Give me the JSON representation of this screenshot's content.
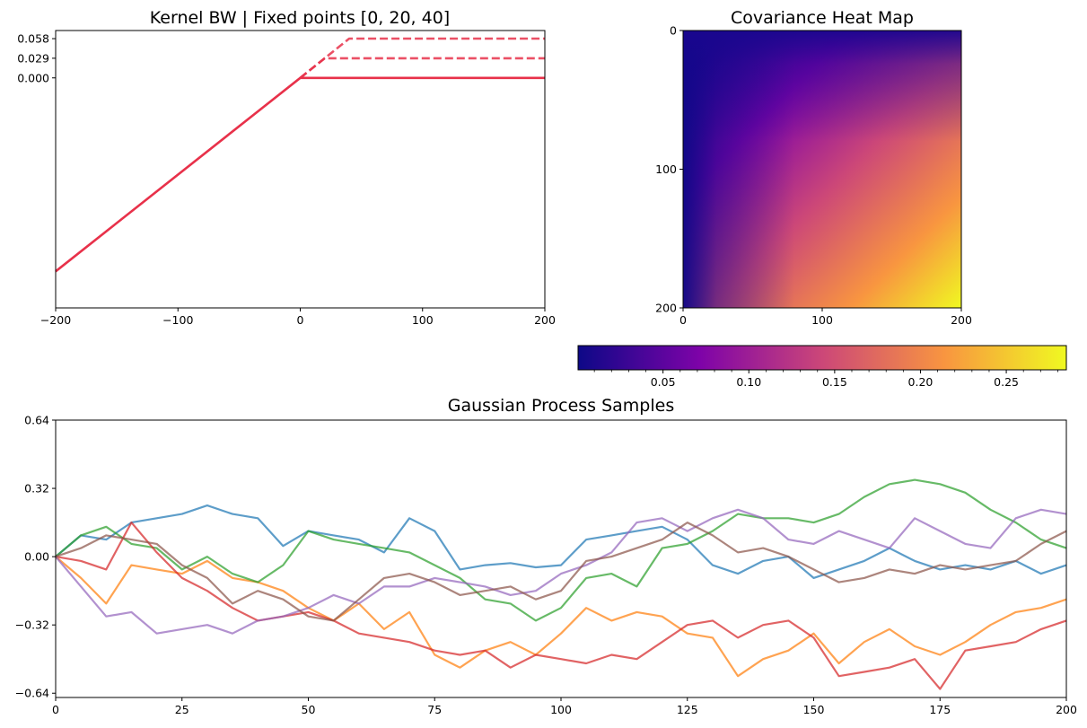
{
  "chart_data": [
    {
      "type": "line",
      "title": "Kernel BW | Fixed points [0, 20, 40]",
      "xlim": [
        -200,
        200
      ],
      "ylim": [
        -0.34,
        0.07
      ],
      "xticks": [
        -200,
        -100,
        0,
        100,
        200
      ],
      "xtick_labels": [
        "−200",
        "−100",
        "0",
        "100",
        "200"
      ],
      "yticks": [
        0.0,
        0.029,
        0.058
      ],
      "ytick_labels": [
        "0.000",
        "0.029",
        "0.058"
      ],
      "color": "#e8314a",
      "series": [
        {
          "style": "solid",
          "x": [
            -200,
            0,
            200
          ],
          "y": [
            -0.286,
            0.0,
            0.0
          ]
        },
        {
          "style": "dashed",
          "x": [
            0,
            20,
            200
          ],
          "y": [
            0.0,
            0.029,
            0.029
          ]
        },
        {
          "style": "dashed",
          "x": [
            0,
            40,
            200
          ],
          "y": [
            0.0,
            0.058,
            0.058
          ]
        }
      ]
    },
    {
      "type": "heatmap",
      "title": "Covariance Heat Map",
      "colormap": "plasma",
      "xlim": [
        0,
        200
      ],
      "ylim": [
        200,
        0
      ],
      "xticks": [
        0,
        100,
        200
      ],
      "yticks": [
        0,
        100,
        200
      ],
      "xtick_labels": [
        "0",
        "100",
        "200"
      ],
      "ytick_labels": [
        "0",
        "100",
        "200"
      ],
      "colorbar": {
        "orientation": "horizontal",
        "range": [
          0.0005,
          0.285
        ],
        "ticks": [
          0.05,
          0.1,
          0.15,
          0.2,
          0.25
        ],
        "tick_labels": [
          "0.05",
          "0.10",
          "0.15",
          "0.20",
          "0.25"
        ]
      }
    },
    {
      "type": "line",
      "title": "Gaussian Process Samples",
      "xlim": [
        0,
        200
      ],
      "ylim": [
        -0.66,
        0.64
      ],
      "xticks": [
        0,
        25,
        50,
        75,
        100,
        125,
        150,
        175,
        200
      ],
      "xtick_labels": [
        "0",
        "25",
        "50",
        "75",
        "100",
        "125",
        "150",
        "175",
        "200"
      ],
      "yticks": [
        -0.64,
        -0.32,
        0.0,
        0.32,
        0.64
      ],
      "ytick_labels": [
        "−0.64",
        "−0.32",
        "0.00",
        "0.32",
        "0.64"
      ],
      "series": [
        {
          "color": "#1f77b4",
          "x": [
            0,
            5,
            10,
            15,
            20,
            25,
            30,
            35,
            40,
            45,
            50,
            55,
            60,
            65,
            70,
            75,
            80,
            85,
            90,
            95,
            100,
            105,
            110,
            115,
            120,
            125,
            130,
            135,
            140,
            145,
            150,
            155,
            160,
            165,
            170,
            175,
            180,
            185,
            190,
            195,
            200
          ],
          "y": [
            0.0,
            0.1,
            0.08,
            0.16,
            0.18,
            0.2,
            0.24,
            0.2,
            0.18,
            0.05,
            0.12,
            0.1,
            0.08,
            0.02,
            0.18,
            0.12,
            -0.06,
            -0.04,
            -0.03,
            -0.05,
            -0.04,
            0.08,
            0.1,
            0.12,
            0.14,
            0.08,
            -0.04,
            -0.08,
            -0.02,
            0.0,
            -0.1,
            -0.06,
            -0.02,
            0.04,
            -0.02,
            -0.06,
            -0.04,
            -0.06,
            -0.02,
            -0.08,
            -0.04
          ]
        },
        {
          "color": "#ff7f0e",
          "x": [
            0,
            5,
            10,
            15,
            20,
            25,
            30,
            35,
            40,
            45,
            50,
            55,
            60,
            65,
            70,
            75,
            80,
            85,
            90,
            95,
            100,
            105,
            110,
            115,
            120,
            125,
            130,
            135,
            140,
            145,
            150,
            155,
            160,
            165,
            170,
            175,
            180,
            185,
            190,
            195,
            200
          ],
          "y": [
            0.0,
            -0.1,
            -0.22,
            -0.04,
            -0.06,
            -0.08,
            -0.02,
            -0.1,
            -0.12,
            -0.16,
            -0.24,
            -0.3,
            -0.22,
            -0.34,
            -0.26,
            -0.46,
            -0.52,
            -0.44,
            -0.4,
            -0.46,
            -0.36,
            -0.24,
            -0.3,
            -0.26,
            -0.28,
            -0.36,
            -0.38,
            -0.56,
            -0.48,
            -0.44,
            -0.36,
            -0.5,
            -0.4,
            -0.34,
            -0.42,
            -0.46,
            -0.4,
            -0.32,
            -0.26,
            -0.24,
            -0.2
          ]
        },
        {
          "color": "#2ca02c",
          "x": [
            0,
            5,
            10,
            15,
            20,
            25,
            30,
            35,
            40,
            45,
            50,
            55,
            60,
            65,
            70,
            75,
            80,
            85,
            90,
            95,
            100,
            105,
            110,
            115,
            120,
            125,
            130,
            135,
            140,
            145,
            150,
            155,
            160,
            165,
            170,
            175,
            180,
            185,
            190,
            195,
            200
          ],
          "y": [
            0.0,
            0.1,
            0.14,
            0.06,
            0.04,
            -0.06,
            0.0,
            -0.08,
            -0.12,
            -0.04,
            0.12,
            0.08,
            0.06,
            0.04,
            0.02,
            -0.04,
            -0.1,
            -0.2,
            -0.22,
            -0.3,
            -0.24,
            -0.1,
            -0.08,
            -0.14,
            0.04,
            0.06,
            0.12,
            0.2,
            0.18,
            0.18,
            0.16,
            0.2,
            0.28,
            0.34,
            0.36,
            0.34,
            0.3,
            0.22,
            0.16,
            0.08,
            0.04
          ]
        },
        {
          "color": "#d62728",
          "x": [
            0,
            5,
            10,
            15,
            20,
            25,
            30,
            35,
            40,
            45,
            50,
            55,
            60,
            65,
            70,
            75,
            80,
            85,
            90,
            95,
            100,
            105,
            110,
            115,
            120,
            125,
            130,
            135,
            140,
            145,
            150,
            155,
            160,
            165,
            170,
            175,
            180,
            185,
            190,
            195,
            200
          ],
          "y": [
            0.0,
            -0.02,
            -0.06,
            0.16,
            0.02,
            -0.1,
            -0.16,
            -0.24,
            -0.3,
            -0.28,
            -0.26,
            -0.3,
            -0.36,
            -0.38,
            -0.4,
            -0.44,
            -0.46,
            -0.44,
            -0.52,
            -0.46,
            -0.48,
            -0.5,
            -0.46,
            -0.48,
            -0.4,
            -0.32,
            -0.3,
            -0.38,
            -0.32,
            -0.3,
            -0.38,
            -0.56,
            -0.54,
            -0.52,
            -0.48,
            -0.62,
            -0.44,
            -0.42,
            -0.4,
            -0.34,
            -0.3
          ]
        },
        {
          "color": "#9467bd",
          "x": [
            0,
            5,
            10,
            15,
            20,
            25,
            30,
            35,
            40,
            45,
            50,
            55,
            60,
            65,
            70,
            75,
            80,
            85,
            90,
            95,
            100,
            105,
            110,
            115,
            120,
            125,
            130,
            135,
            140,
            145,
            150,
            155,
            160,
            165,
            170,
            175,
            180,
            185,
            190,
            195,
            200
          ],
          "y": [
            0.0,
            -0.14,
            -0.28,
            -0.26,
            -0.36,
            -0.34,
            -0.32,
            -0.36,
            -0.3,
            -0.28,
            -0.24,
            -0.18,
            -0.22,
            -0.14,
            -0.14,
            -0.1,
            -0.12,
            -0.14,
            -0.18,
            -0.16,
            -0.08,
            -0.04,
            0.02,
            0.16,
            0.18,
            0.12,
            0.18,
            0.22,
            0.18,
            0.08,
            0.06,
            0.12,
            0.08,
            0.04,
            0.18,
            0.12,
            0.06,
            0.04,
            0.18,
            0.22,
            0.2
          ]
        },
        {
          "color": "#8c564b",
          "x": [
            0,
            5,
            10,
            15,
            20,
            25,
            30,
            35,
            40,
            45,
            50,
            55,
            60,
            65,
            70,
            75,
            80,
            85,
            90,
            95,
            100,
            105,
            110,
            115,
            120,
            125,
            130,
            135,
            140,
            145,
            150,
            155,
            160,
            165,
            170,
            175,
            180,
            185,
            190,
            195,
            200
          ],
          "y": [
            0.0,
            0.04,
            0.1,
            0.08,
            0.06,
            -0.04,
            -0.1,
            -0.22,
            -0.16,
            -0.2,
            -0.28,
            -0.3,
            -0.2,
            -0.1,
            -0.08,
            -0.12,
            -0.18,
            -0.16,
            -0.14,
            -0.2,
            -0.16,
            -0.02,
            0.0,
            0.04,
            0.08,
            0.16,
            0.1,
            0.02,
            0.04,
            0.0,
            -0.06,
            -0.12,
            -0.1,
            -0.06,
            -0.08,
            -0.04,
            -0.06,
            -0.04,
            -0.02,
            0.06,
            0.12
          ]
        }
      ]
    }
  ]
}
